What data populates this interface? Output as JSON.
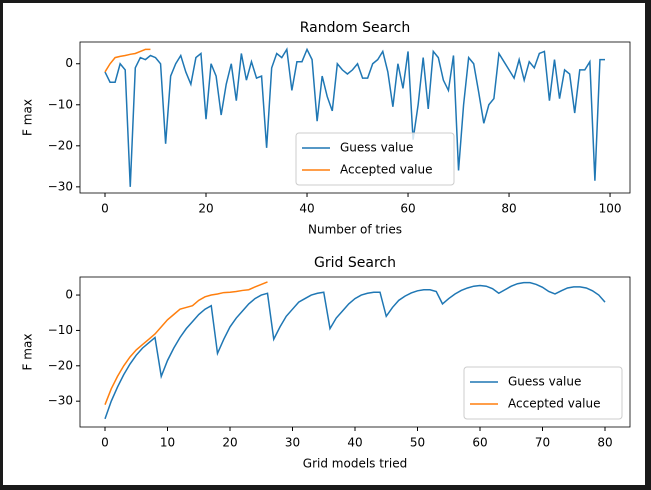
{
  "chart_data": [
    {
      "type": "line",
      "title": "Random Search",
      "xlabel": "Number of tries",
      "ylabel": "F max",
      "xlim": [
        -4.95,
        103.95
      ],
      "ylim": [
        -31.5,
        5.3
      ],
      "xticks": [
        0,
        20,
        40,
        60,
        80,
        100
      ],
      "yticks": [
        {
          "value": -30,
          "label": "−30"
        },
        {
          "value": -20,
          "label": "−20"
        },
        {
          "value": -10,
          "label": "−10"
        },
        0
      ],
      "legend": "lower center",
      "series": [
        {
          "name": "Guess value",
          "color": "#1f77b4",
          "x": [
            0,
            1,
            2,
            3,
            4,
            5,
            6,
            7,
            8,
            9,
            10,
            11,
            12,
            13,
            14,
            15,
            16,
            17,
            18,
            19,
            20,
            21,
            22,
            23,
            24,
            25,
            26,
            27,
            28,
            29,
            30,
            31,
            32,
            33,
            34,
            35,
            36,
            37,
            38,
            39,
            40,
            41,
            42,
            43,
            44,
            45,
            46,
            47,
            48,
            49,
            50,
            51,
            52,
            53,
            54,
            55,
            56,
            57,
            58,
            59,
            60,
            61,
            62,
            63,
            64,
            65,
            66,
            67,
            68,
            69,
            70,
            71,
            72,
            73,
            74,
            75,
            76,
            77,
            78,
            79,
            80,
            81,
            82,
            83,
            84,
            85,
            86,
            87,
            88,
            89,
            90,
            91,
            92,
            93,
            94,
            95,
            96,
            97,
            98,
            99
          ],
          "values": [
            -2,
            -4.5,
            -4.5,
            0,
            -1.5,
            -30,
            -1,
            1.5,
            1,
            2,
            1.5,
            0,
            -19.5,
            -3,
            0,
            2,
            -2,
            -5,
            1.5,
            2.5,
            -13.5,
            0,
            -3,
            -12.5,
            -5,
            0,
            -9,
            2.5,
            -4,
            0.5,
            -3.5,
            -3,
            -20.5,
            -1,
            2.5,
            1.5,
            3.5,
            -6.5,
            0.5,
            0.5,
            3.5,
            1,
            -14,
            -3,
            -8,
            -11.5,
            0,
            -1.5,
            -2.5,
            -1.5,
            0,
            -3.5,
            -3.5,
            0,
            1,
            3,
            -2,
            -10.5,
            0,
            -6,
            3,
            -18.5,
            -10,
            1.5,
            -11,
            3,
            1.5,
            -4,
            -6.5,
            2,
            -26,
            -10,
            1.5,
            0,
            -7,
            -14.5,
            -10,
            -8.5,
            2.5,
            0.5,
            -1.5,
            -3.5,
            1,
            -4,
            0.5,
            -1,
            2.5,
            3,
            -9,
            1,
            -8.5,
            -1.5,
            -2.5,
            -12,
            -1.5,
            -1.5,
            0.5,
            -28.5,
            1,
            1
          ]
        },
        {
          "name": "Accepted value",
          "color": "#ff7f0e",
          "x": [
            0,
            1,
            2,
            3,
            4,
            5,
            6,
            7,
            8,
            9
          ],
          "values": [
            -2,
            0,
            1.5,
            1.8,
            2,
            2.3,
            2.5,
            3,
            3.5,
            3.5
          ]
        }
      ]
    },
    {
      "type": "line",
      "title": "Grid Search",
      "xlabel": "Grid models tried",
      "ylabel": "F max",
      "xlim": [
        -4,
        84
      ],
      "ylim": [
        -37.3,
        5.1
      ],
      "xticks": [
        0,
        10,
        20,
        30,
        40,
        50,
        60,
        70,
        80
      ],
      "yticks": [
        {
          "value": -30,
          "label": "−30"
        },
        {
          "value": -20,
          "label": "−20"
        },
        {
          "value": -10,
          "label": "−10"
        },
        0
      ],
      "legend": "lower right",
      "series": [
        {
          "name": "Guess value",
          "color": "#1f77b4",
          "x": [
            0,
            1,
            2,
            3,
            4,
            5,
            6,
            7,
            8,
            9,
            10,
            11,
            12,
            13,
            14,
            15,
            16,
            17,
            18,
            19,
            20,
            21,
            22,
            23,
            24,
            25,
            26,
            27,
            28,
            29,
            30,
            31,
            32,
            33,
            34,
            35,
            36,
            37,
            38,
            39,
            40,
            41,
            42,
            43,
            44,
            45,
            46,
            47,
            48,
            49,
            50,
            51,
            52,
            53,
            54,
            55,
            56,
            57,
            58,
            59,
            60,
            61,
            62,
            63,
            64,
            65,
            66,
            67,
            68,
            69,
            70,
            71,
            72,
            73,
            74,
            75,
            76,
            77,
            78,
            79,
            80
          ],
          "values": [
            -35,
            -30,
            -26,
            -22.5,
            -19.5,
            -17,
            -15,
            -13.5,
            -12,
            -23,
            -18.5,
            -15,
            -12,
            -9.5,
            -7.5,
            -5.5,
            -4,
            -3,
            -16.5,
            -12.5,
            -9,
            -6.5,
            -4.5,
            -2.5,
            -1,
            0,
            0.5,
            -12.5,
            -9,
            -6,
            -4,
            -2,
            -1,
            0,
            0.5,
            0.8,
            -9.5,
            -6.5,
            -4.5,
            -2.5,
            -1,
            0,
            0.5,
            0.8,
            0.8,
            -6,
            -3.5,
            -1.5,
            -0.3,
            0.6,
            1.2,
            1.5,
            1.5,
            1,
            -2.5,
            -1,
            0.3,
            1.3,
            2,
            2.5,
            2.7,
            2.5,
            1.8,
            0.5,
            1.5,
            2.5,
            3.2,
            3.5,
            3.5,
            3,
            2.2,
            1,
            0.3,
            1.2,
            2,
            2.3,
            2.3,
            2,
            1.2,
            0,
            -2
          ]
        },
        {
          "name": "Accepted value",
          "color": "#ff7f0e",
          "x": [
            0,
            1,
            2,
            3,
            4,
            5,
            6,
            7,
            8,
            9,
            10,
            11,
            12,
            13,
            14,
            15,
            16,
            17,
            18,
            19,
            20,
            21,
            22,
            23,
            24,
            25,
            26
          ],
          "values": [
            -31,
            -26.5,
            -23,
            -20,
            -17.5,
            -15.5,
            -14,
            -12.5,
            -11,
            -9,
            -7,
            -5.5,
            -4,
            -3.5,
            -3,
            -1.5,
            -0.5,
            0,
            0.3,
            0.7,
            0.8,
            1,
            1.3,
            1.5,
            2.3,
            3,
            3.7
          ]
        }
      ]
    }
  ]
}
